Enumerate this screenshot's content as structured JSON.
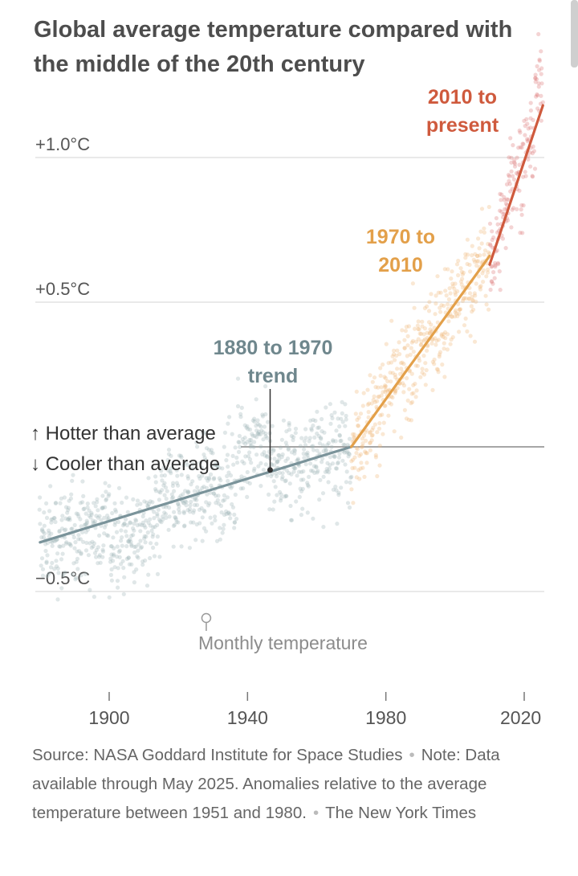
{
  "title": "Global average temperature compared with the middle of the 20th century",
  "chart_data": {
    "type": "scatter",
    "title": "Global average temperature compared with the middle of the 20th century",
    "xlabel": "",
    "ylabel": "",
    "xlim": [
      1877,
      2026
    ],
    "ylim": [
      -0.85,
      1.3
    ],
    "x_ticks": [
      {
        "value": 1900,
        "label": "1900"
      },
      {
        "value": 1940,
        "label": "1940"
      },
      {
        "value": 1980,
        "label": "1980"
      },
      {
        "value": 2020,
        "label": "2020"
      }
    ],
    "y_ticks": [
      {
        "value": 1.0,
        "label": "+1.0°C"
      },
      {
        "value": 0.5,
        "label": "+0.5°C"
      },
      {
        "value": -0.5,
        "label": "−0.5°C"
      }
    ],
    "baseline": {
      "value": 0,
      "above_label": "↑  Hotter than average",
      "below_label": "↓  Cooler than average"
    },
    "trends": [
      {
        "name": "1880 to 1970 trend",
        "label_lines": [
          "1880 to 1970",
          "trend"
        ],
        "x": [
          1880,
          1970
        ],
        "y": [
          -0.33,
          0.0
        ],
        "color": "#7a939a"
      },
      {
        "name": "1970 to 2010",
        "label_lines": [
          "1970 to",
          "2010"
        ],
        "x": [
          1970,
          2010
        ],
        "y": [
          0.0,
          0.66
        ],
        "color": "#e3a04a"
      },
      {
        "name": "2010 to present",
        "label_lines": [
          "2010 to",
          "present"
        ],
        "x": [
          2010,
          2025.4
        ],
        "y": [
          0.63,
          1.18
        ],
        "color": "#cf5a3d"
      }
    ],
    "trend_marker": {
      "x": 1947,
      "y": -0.08
    },
    "scatter_legend": {
      "label": "Monthly temperature",
      "x": 1929,
      "y": -0.6
    },
    "series": [
      {
        "name": "Monthly temperature 1880–1970",
        "x_range": [
          1880,
          1970
        ],
        "color": "#9fb3b7"
      },
      {
        "name": "Monthly temperature 1970–2010",
        "x_range": [
          1970,
          2010
        ],
        "color": "#f0b77a"
      },
      {
        "name": "Monthly temperature 2010–present",
        "x_range": [
          2010,
          2025.4
        ],
        "color": "#dd7a7a"
      }
    ]
  },
  "footer": {
    "source": "Source: NASA Goddard Institute for Space Studies",
    "note": "Note: Data available through May 2025. Anomalies relative to the average temperature between 1951 and 1980.",
    "credit": "The New York Times"
  }
}
